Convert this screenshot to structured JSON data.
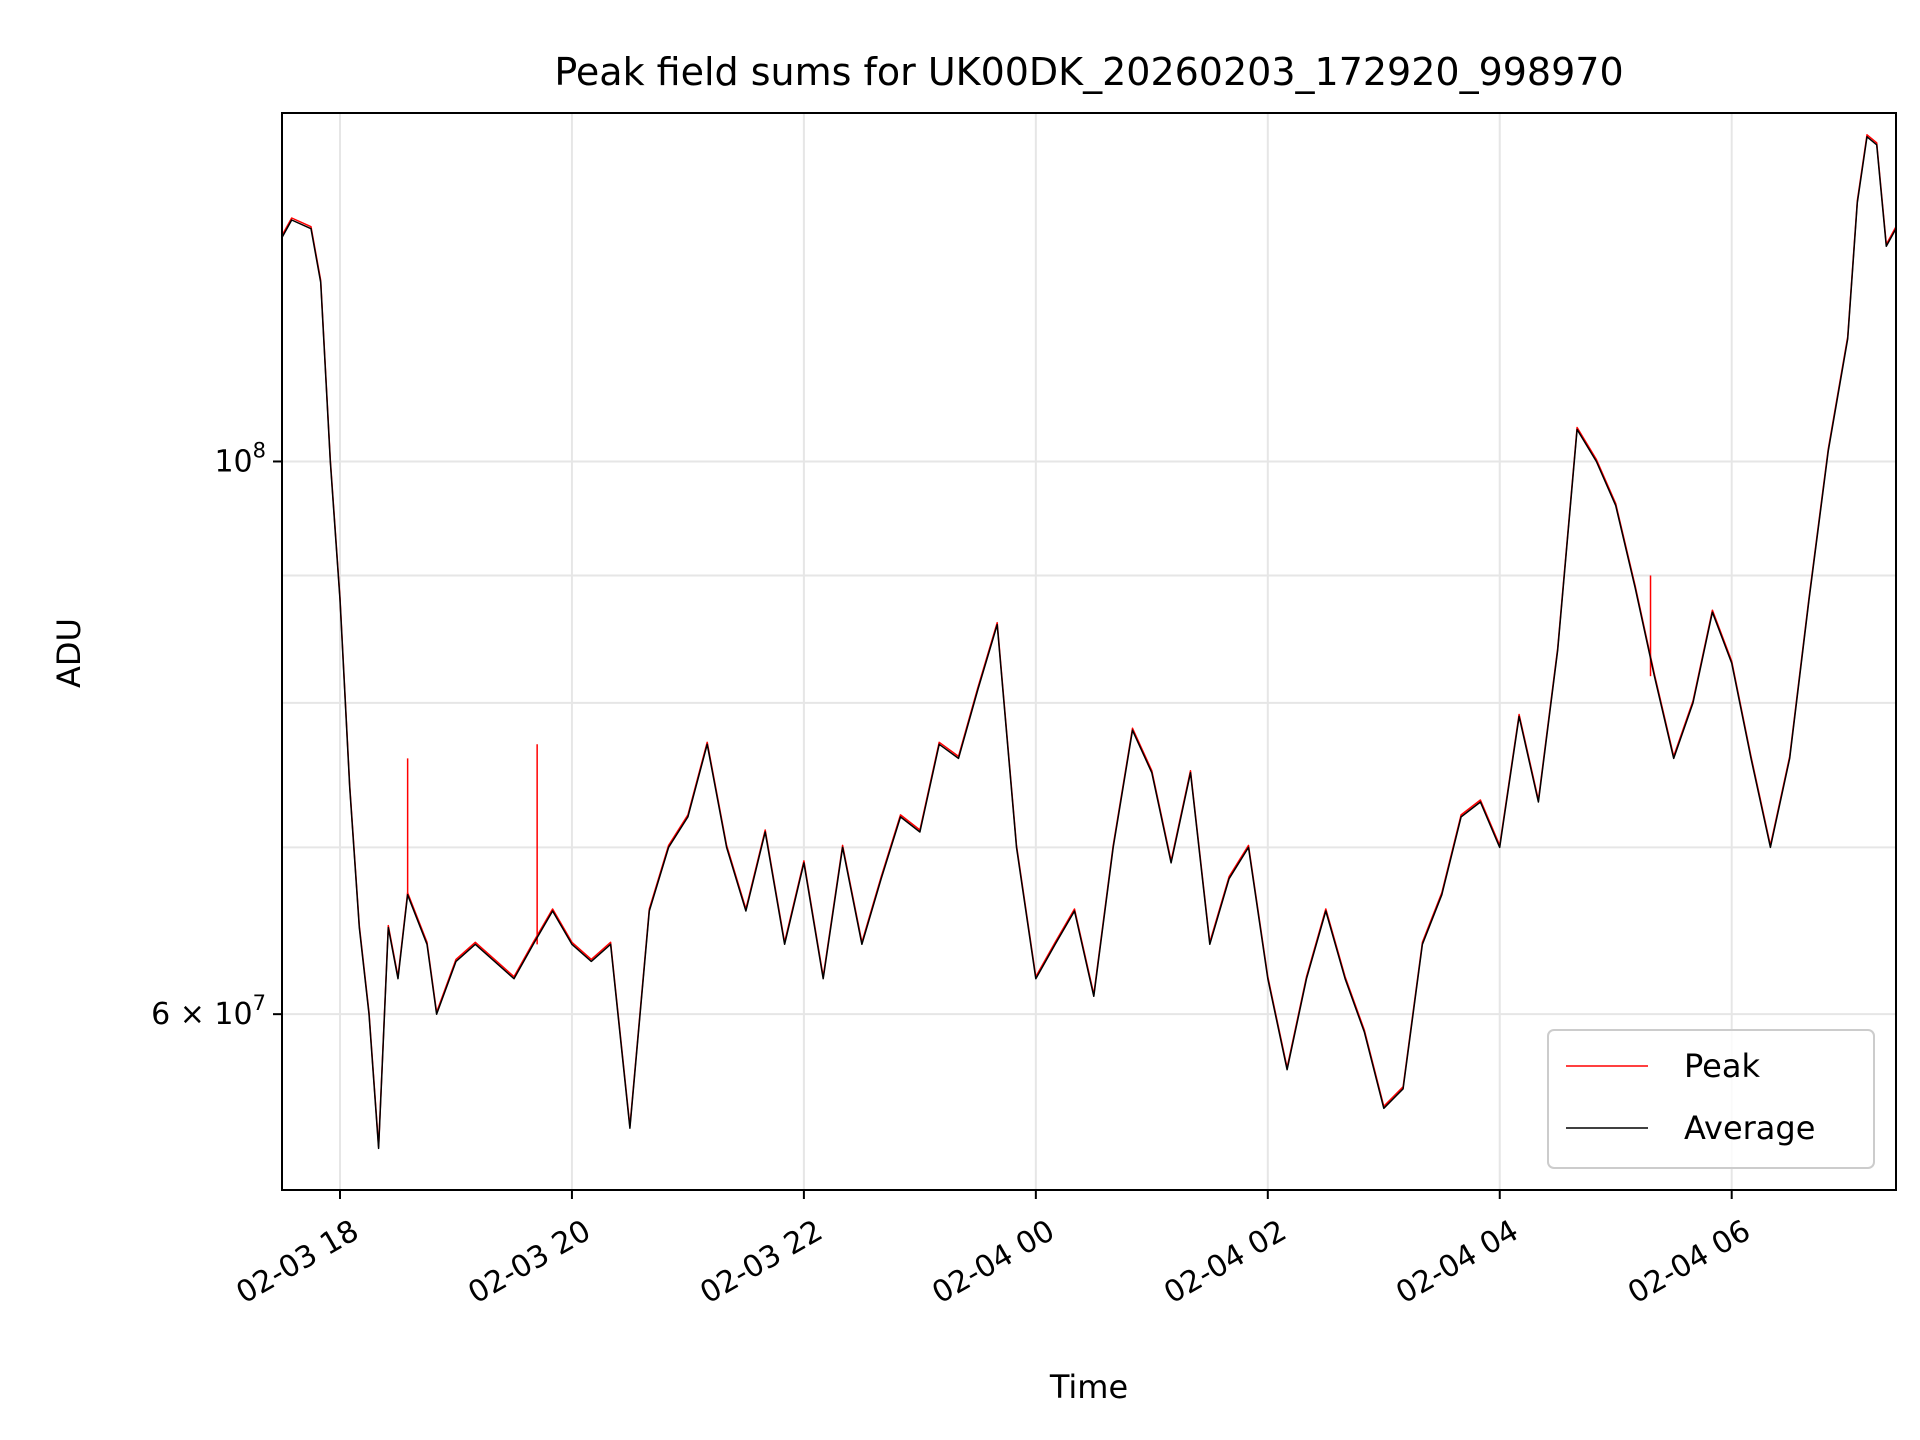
{
  "chart_data": {
    "type": "line",
    "title": "Peak field sums for UK00DK_20260203_172920_998970",
    "xlabel": "Time",
    "ylabel": "ADU",
    "y_scale": "log",
    "ylim": [
      51000000,
      138000000
    ],
    "xlim": [
      "2026-02-03 17:30",
      "2026-02-04 07:25"
    ],
    "grid": true,
    "legend_position": "lower right",
    "x_ticks": [
      {
        "value": "2026-02-03 18:00",
        "label": "02-03 18"
      },
      {
        "value": "2026-02-03 20:00",
        "label": "02-03 20"
      },
      {
        "value": "2026-02-03 22:00",
        "label": "02-03 22"
      },
      {
        "value": "2026-02-04 00:00",
        "label": "02-04 00"
      },
      {
        "value": "2026-02-04 02:00",
        "label": "02-04 02"
      },
      {
        "value": "2026-02-04 04:00",
        "label": "02-04 04"
      },
      {
        "value": "2026-02-04 06:00",
        "label": "02-04 06"
      }
    ],
    "y_ticks": [
      {
        "value": 60000000,
        "label_base": "6 × 10",
        "label_exp": "7"
      },
      {
        "value": 100000000,
        "label_base": "10",
        "label_exp": "8"
      }
    ],
    "y_minor_grid": [
      70000000,
      80000000,
      90000000
    ],
    "series": [
      {
        "name": "Peak",
        "color": "#ff0000",
        "spikes": [
          {
            "t": "2026-02-03 18:35",
            "y": 76000000
          },
          {
            "t": "2026-02-03 19:42",
            "y": 77000000
          },
          {
            "t": "2026-02-04 05:18",
            "y": 90000000
          }
        ]
      },
      {
        "name": "Average",
        "color": "#000000"
      }
    ],
    "x": [
      "2026-02-03 17:30",
      "2026-02-03 17:35",
      "2026-02-03 17:45",
      "2026-02-03 17:50",
      "2026-02-03 17:55",
      "2026-02-03 18:00",
      "2026-02-03 18:05",
      "2026-02-03 18:10",
      "2026-02-03 18:15",
      "2026-02-03 18:20",
      "2026-02-03 18:25",
      "2026-02-03 18:30",
      "2026-02-03 18:35",
      "2026-02-03 18:45",
      "2026-02-03 18:50",
      "2026-02-03 19:00",
      "2026-02-03 19:10",
      "2026-02-03 19:20",
      "2026-02-03 19:30",
      "2026-02-03 19:40",
      "2026-02-03 19:50",
      "2026-02-03 20:00",
      "2026-02-03 20:10",
      "2026-02-03 20:20",
      "2026-02-03 20:30",
      "2026-02-03 20:40",
      "2026-02-03 20:50",
      "2026-02-03 21:00",
      "2026-02-03 21:10",
      "2026-02-03 21:20",
      "2026-02-03 21:30",
      "2026-02-03 21:40",
      "2026-02-03 21:50",
      "2026-02-03 22:00",
      "2026-02-03 22:10",
      "2026-02-03 22:20",
      "2026-02-03 22:30",
      "2026-02-03 22:40",
      "2026-02-03 22:50",
      "2026-02-03 23:00",
      "2026-02-03 23:10",
      "2026-02-03 23:20",
      "2026-02-03 23:30",
      "2026-02-03 23:40",
      "2026-02-03 23:50",
      "2026-02-04 00:00",
      "2026-02-04 00:10",
      "2026-02-04 00:20",
      "2026-02-04 00:30",
      "2026-02-04 00:40",
      "2026-02-04 00:50",
      "2026-02-04 01:00",
      "2026-02-04 01:10",
      "2026-02-04 01:20",
      "2026-02-04 01:30",
      "2026-02-04 01:40",
      "2026-02-04 01:50",
      "2026-02-04 02:00",
      "2026-02-04 02:10",
      "2026-02-04 02:20",
      "2026-02-04 02:30",
      "2026-02-04 02:40",
      "2026-02-04 02:50",
      "2026-02-04 03:00",
      "2026-02-04 03:10",
      "2026-02-04 03:20",
      "2026-02-04 03:30",
      "2026-02-04 03:40",
      "2026-02-04 03:50",
      "2026-02-04 04:00",
      "2026-02-04 04:10",
      "2026-02-04 04:20",
      "2026-02-04 04:30",
      "2026-02-04 04:40",
      "2026-02-04 04:50",
      "2026-02-04 05:00",
      "2026-02-04 05:10",
      "2026-02-04 05:20",
      "2026-02-04 05:30",
      "2026-02-04 05:40",
      "2026-02-04 05:50",
      "2026-02-04 06:00",
      "2026-02-04 06:10",
      "2026-02-04 06:20",
      "2026-02-04 06:30",
      "2026-02-04 06:40",
      "2026-02-04 06:50",
      "2026-02-04 07:00",
      "2026-02-04 07:05",
      "2026-02-04 07:10",
      "2026-02-04 07:15",
      "2026-02-04 07:20",
      "2026-02-04 07:25"
    ],
    "y": [
      123000000,
      125000000,
      124000000,
      118000000,
      100000000,
      88000000,
      74000000,
      65000000,
      60000000,
      53000000,
      65000000,
      62000000,
      67000000,
      64000000,
      60000000,
      63000000,
      64000000,
      63000000,
      62000000,
      64000000,
      66000000,
      64000000,
      63000000,
      64000000,
      54000000,
      66000000,
      70000000,
      72000000,
      77000000,
      70000000,
      66000000,
      71000000,
      64000000,
      69000000,
      62000000,
      70000000,
      64000000,
      68000000,
      72000000,
      71000000,
      77000000,
      76000000,
      81000000,
      86000000,
      70000000,
      62000000,
      64000000,
      66000000,
      61000000,
      70000000,
      78000000,
      75000000,
      69000000,
      75000000,
      64000000,
      68000000,
      70000000,
      62000000,
      57000000,
      62000000,
      66000000,
      62000000,
      59000000,
      55000000,
      56000000,
      64000000,
      67000000,
      72000000,
      73000000,
      70000000,
      79000000,
      73000000,
      84000000,
      103000000,
      100000000,
      96000000,
      89000000,
      82000000,
      76000000,
      80000000,
      87000000,
      83000000,
      76000000,
      70000000,
      76000000,
      88000000,
      101000000,
      112000000,
      127000000,
      135000000,
      134000000,
      122000000,
      124000000
    ]
  }
}
